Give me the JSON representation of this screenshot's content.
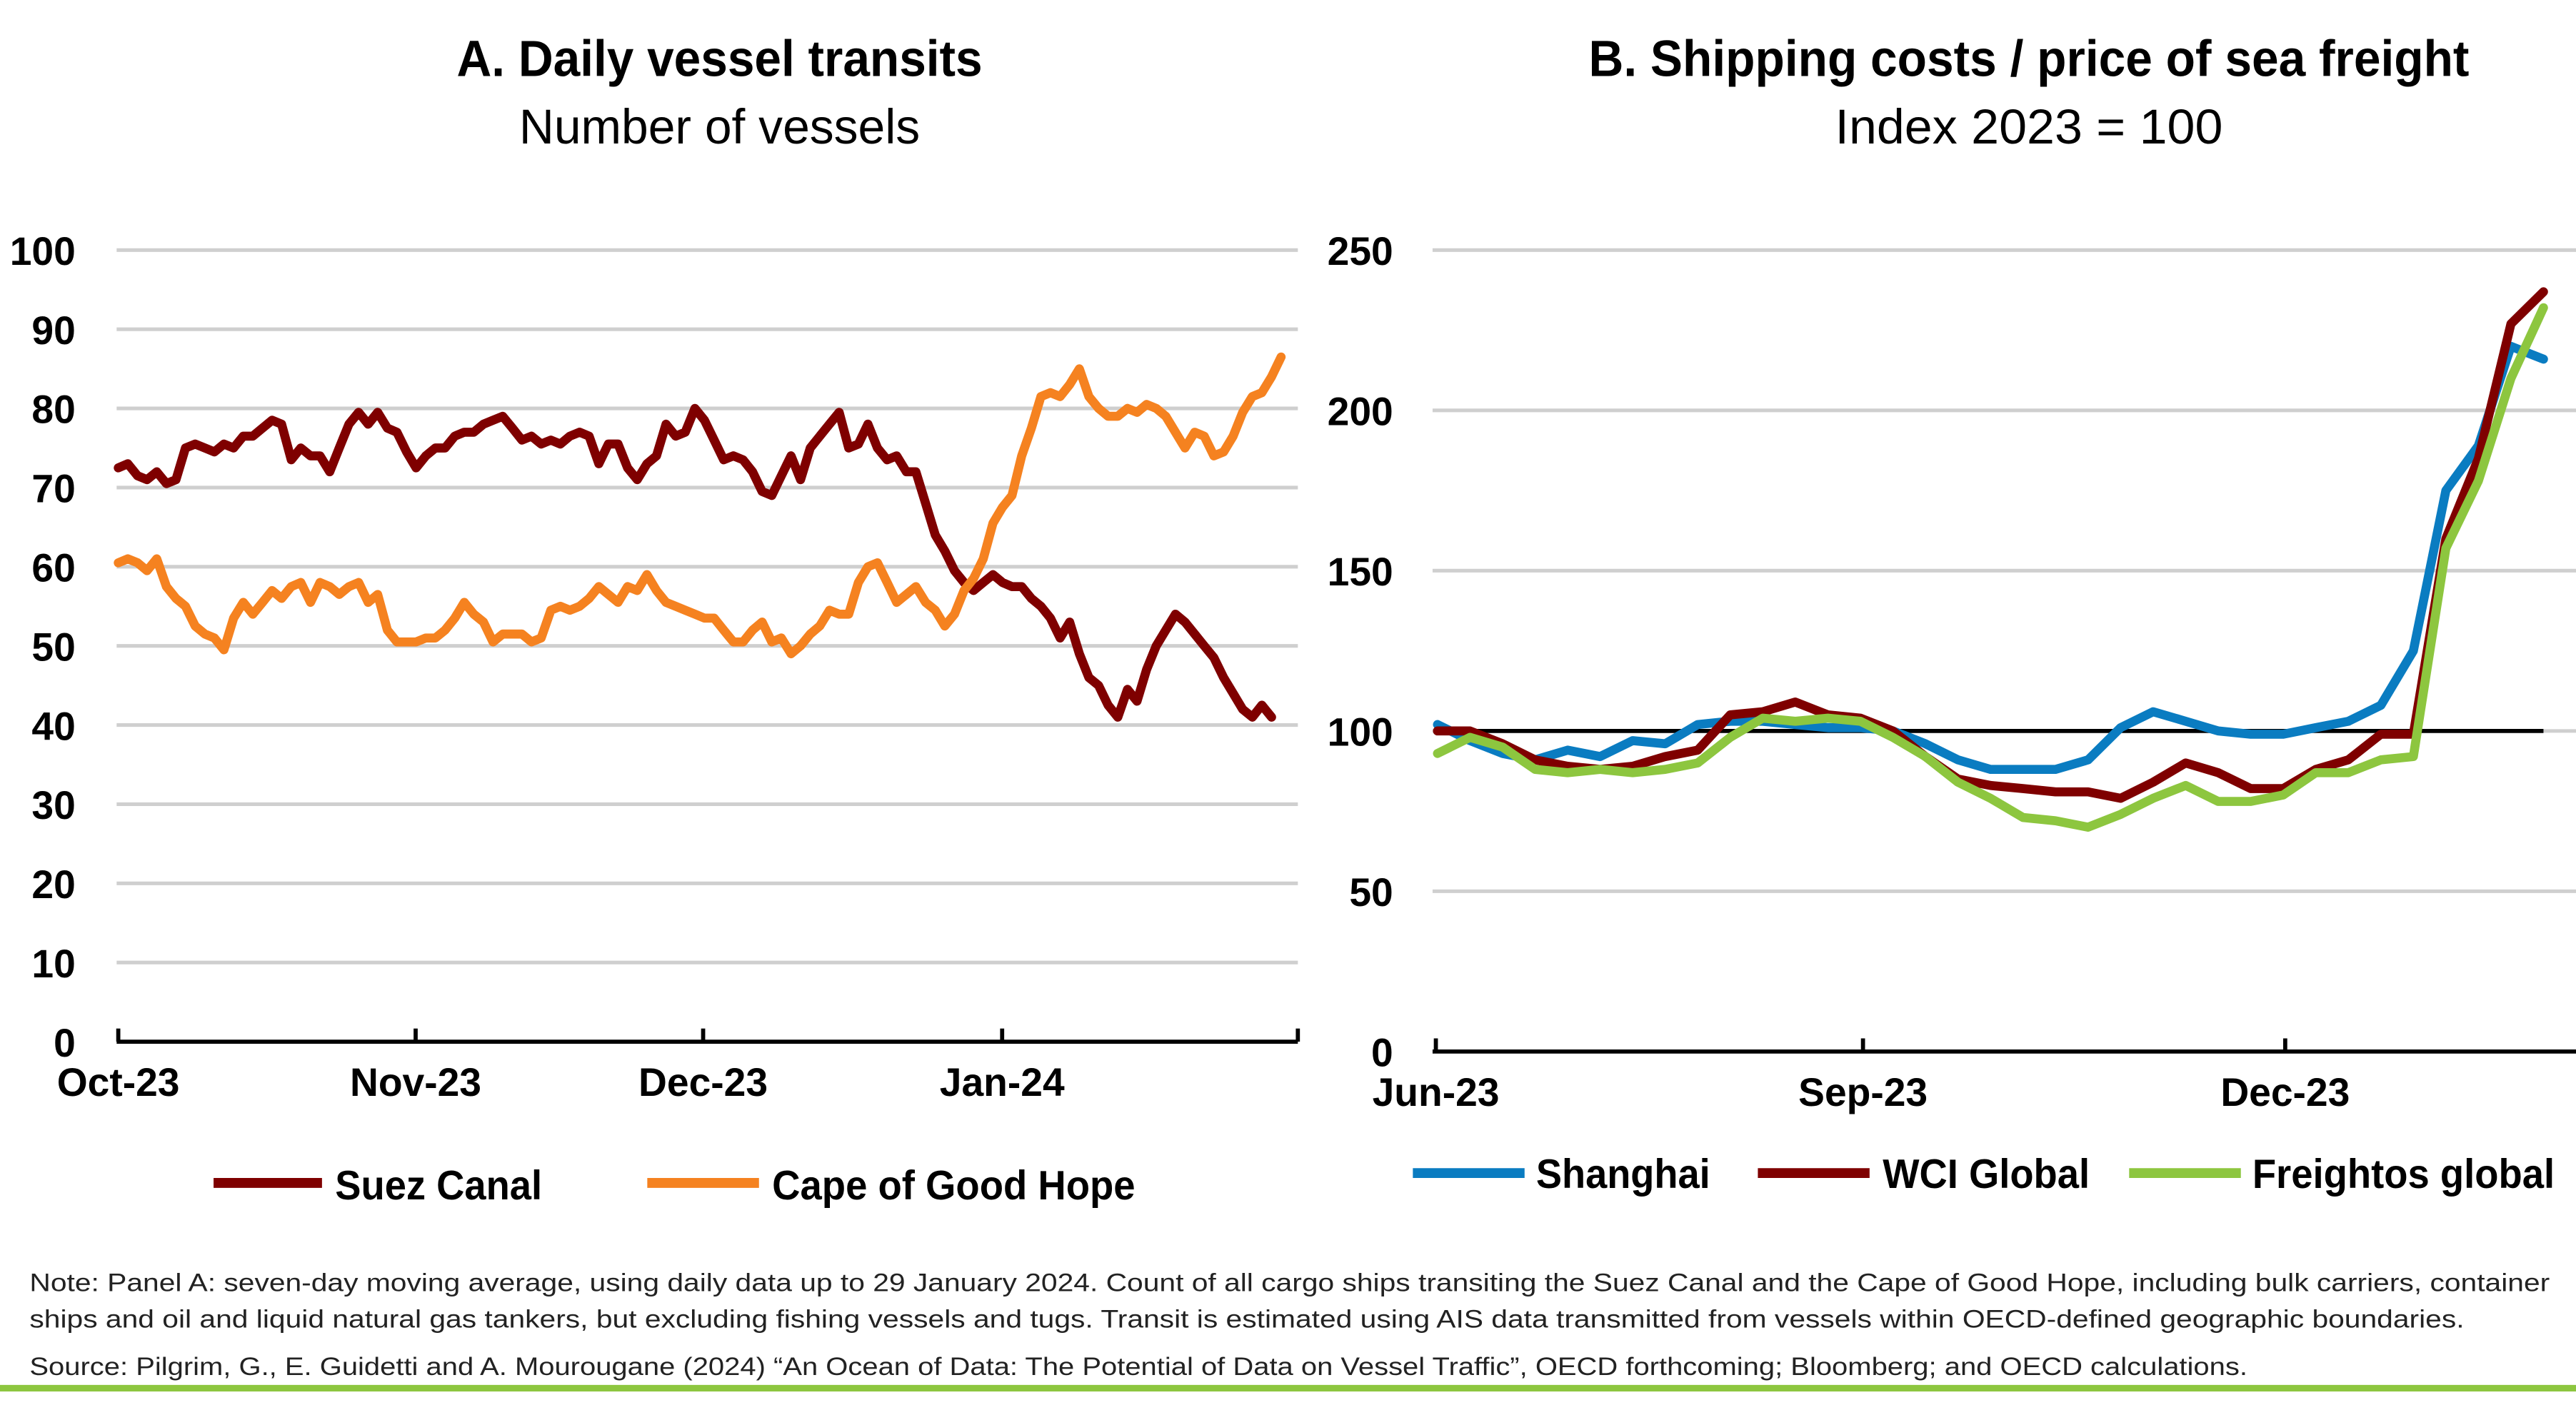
{
  "chart_data": [
    {
      "type": "line",
      "title": "A. Daily vessel transits",
      "subtitle": "Number of vessels",
      "xlabel": "",
      "ylabel": "",
      "ylim": [
        0,
        100
      ],
      "yticks": [
        "0",
        "10",
        "20",
        "30",
        "40",
        "50",
        "60",
        "70",
        "80",
        "90",
        "100"
      ],
      "xticks": [
        "Oct-23",
        "Nov-23",
        "Dec-23",
        "Jan-24"
      ],
      "x_note": "daily, day index from 1 Oct 2023",
      "grid": true,
      "legend_placement": "bottom",
      "series": [
        {
          "name": "Suez Canal",
          "color": "#7f0000",
          "values": [
            72.5,
            73,
            71.5,
            71,
            72,
            70.5,
            71,
            75,
            75.5,
            75,
            74.5,
            75.5,
            75,
            76.5,
            76.5,
            77.5,
            78.5,
            78,
            73.5,
            75,
            74,
            74,
            72,
            75,
            78,
            79.5,
            78,
            79.5,
            77.5,
            77,
            74.5,
            72.5,
            74,
            75,
            75,
            76.5,
            77,
            77,
            78,
            78.5,
            79,
            77.5,
            76,
            76.5,
            75.5,
            76,
            75.5,
            76.5,
            77,
            76.5,
            73,
            75.5,
            75.5,
            72.5,
            71,
            73,
            74,
            78,
            76.5,
            77,
            80,
            78.5,
            76,
            73.5,
            74,
            73.5,
            72,
            69.5,
            69,
            71.5,
            74,
            71,
            75,
            76.5,
            78,
            79.5,
            75,
            75.5,
            78,
            75,
            73.5,
            74,
            72,
            72,
            68,
            64,
            62,
            59.5,
            58,
            57,
            58,
            59,
            58,
            57.5,
            57.5,
            56,
            55,
            53.5,
            51,
            53,
            49,
            46,
            45,
            42.5,
            41,
            44.5,
            43,
            47,
            50,
            52,
            54,
            53,
            51.5,
            50,
            48.5,
            46,
            44,
            42,
            41,
            42.5,
            41
          ]
        },
        {
          "name": "Cape of Good Hope",
          "color": "#f58220",
          "values": [
            60.5,
            61,
            60.5,
            59.5,
            61,
            57.5,
            56,
            55,
            52.5,
            51.5,
            51,
            49.5,
            53.5,
            55.5,
            54,
            55.5,
            57,
            56,
            57.5,
            58,
            55.5,
            58,
            57.5,
            56.5,
            57.5,
            58,
            55.5,
            56.5,
            52,
            50.5,
            50.5,
            50.5,
            51,
            51,
            52,
            53.5,
            55.5,
            54,
            53,
            50.5,
            51.5,
            51.5,
            51.5,
            50.5,
            51,
            54.5,
            55,
            54.5,
            55,
            56,
            57.5,
            56.5,
            55.5,
            57.5,
            57,
            59,
            57,
            55.5,
            55,
            54.5,
            54,
            53.5,
            53.5,
            52,
            50.5,
            50.5,
            52,
            53,
            50.5,
            51,
            49,
            50,
            51.5,
            52.5,
            54.5,
            54,
            54,
            58,
            60,
            60.5,
            58,
            55.5,
            56.5,
            57.5,
            55.5,
            54.5,
            52.5,
            54,
            57,
            58.5,
            61,
            65.5,
            67.5,
            69,
            74,
            77.5,
            81.5,
            82,
            81.5,
            83,
            85,
            81.5,
            80,
            79,
            79,
            80,
            79.5,
            80.5,
            80,
            79,
            77,
            75,
            77,
            76.5,
            74,
            74.5,
            76.5,
            79.5,
            81.5,
            82,
            84,
            86.5
          ]
        }
      ]
    },
    {
      "type": "line",
      "title": "B. Shipping costs / price of sea freight",
      "subtitle": "Index 2023  = 100",
      "xlabel": "",
      "ylabel": "",
      "ylim": [
        0,
        250
      ],
      "yticks": [
        "0",
        "50",
        "100",
        "150",
        "200",
        "250"
      ],
      "xticks": [
        "Jun-23",
        "Sep-23",
        "Dec-23"
      ],
      "x_note": "weekly, week index from 1 Jun 2023",
      "reference_line": 100,
      "grid": true,
      "legend_placement": "bottom",
      "series": [
        {
          "name": "Shanghai",
          "color": "#0a7cc1",
          "values": [
            102,
            97,
            93,
            91,
            94,
            92,
            97,
            96,
            102,
            103,
            103,
            102,
            101,
            101,
            100,
            96,
            91,
            88,
            88,
            88,
            91,
            101,
            106,
            103,
            100,
            99,
            99,
            101,
            103,
            108,
            125,
            175,
            189,
            220,
            216
          ]
        },
        {
          "name": "WCI Global",
          "color": "#7f0000",
          "values": [
            100,
            100,
            96,
            91,
            89,
            88,
            89,
            92,
            94,
            105,
            106,
            109,
            105,
            104,
            100,
            92,
            85,
            83,
            82,
            81,
            81,
            79,
            84,
            90,
            87,
            82,
            82,
            88,
            91,
            99,
            99,
            160,
            185,
            227,
            237
          ]
        },
        {
          "name": "Freightos global",
          "color": "#8dc63f",
          "values": [
            93,
            98,
            95,
            88,
            87,
            88,
            87,
            88,
            90,
            98,
            104,
            103,
            104,
            103,
            98,
            92,
            84,
            79,
            73,
            72,
            70,
            74,
            79,
            83,
            78,
            78,
            80,
            87,
            87,
            91,
            92,
            157,
            178,
            210,
            232
          ]
        }
      ]
    }
  ],
  "notes": {
    "note_line1": "Note: Panel A: seven-day moving average, using daily data up to 29 January 2024. Count of all cargo ships transiting the Suez Canal and the Cape of Good Hope, including bulk carriers, container",
    "note_line2": "ships and oil and liquid natural gas tankers, but excluding fishing vessels and tugs. Transit is estimated using AIS data transmitted from vessels within OECD-defined geographic boundaries.",
    "source": "Source: Pilgrim, G., E. Guidetti and A. Mourougane (2024) “An Ocean of Data: The Potential of Data on Vessel Traffic”, OECD forthcoming; Bloomberg; and OECD calculations."
  },
  "colors": {
    "footer_rule": "#8dc63f"
  }
}
